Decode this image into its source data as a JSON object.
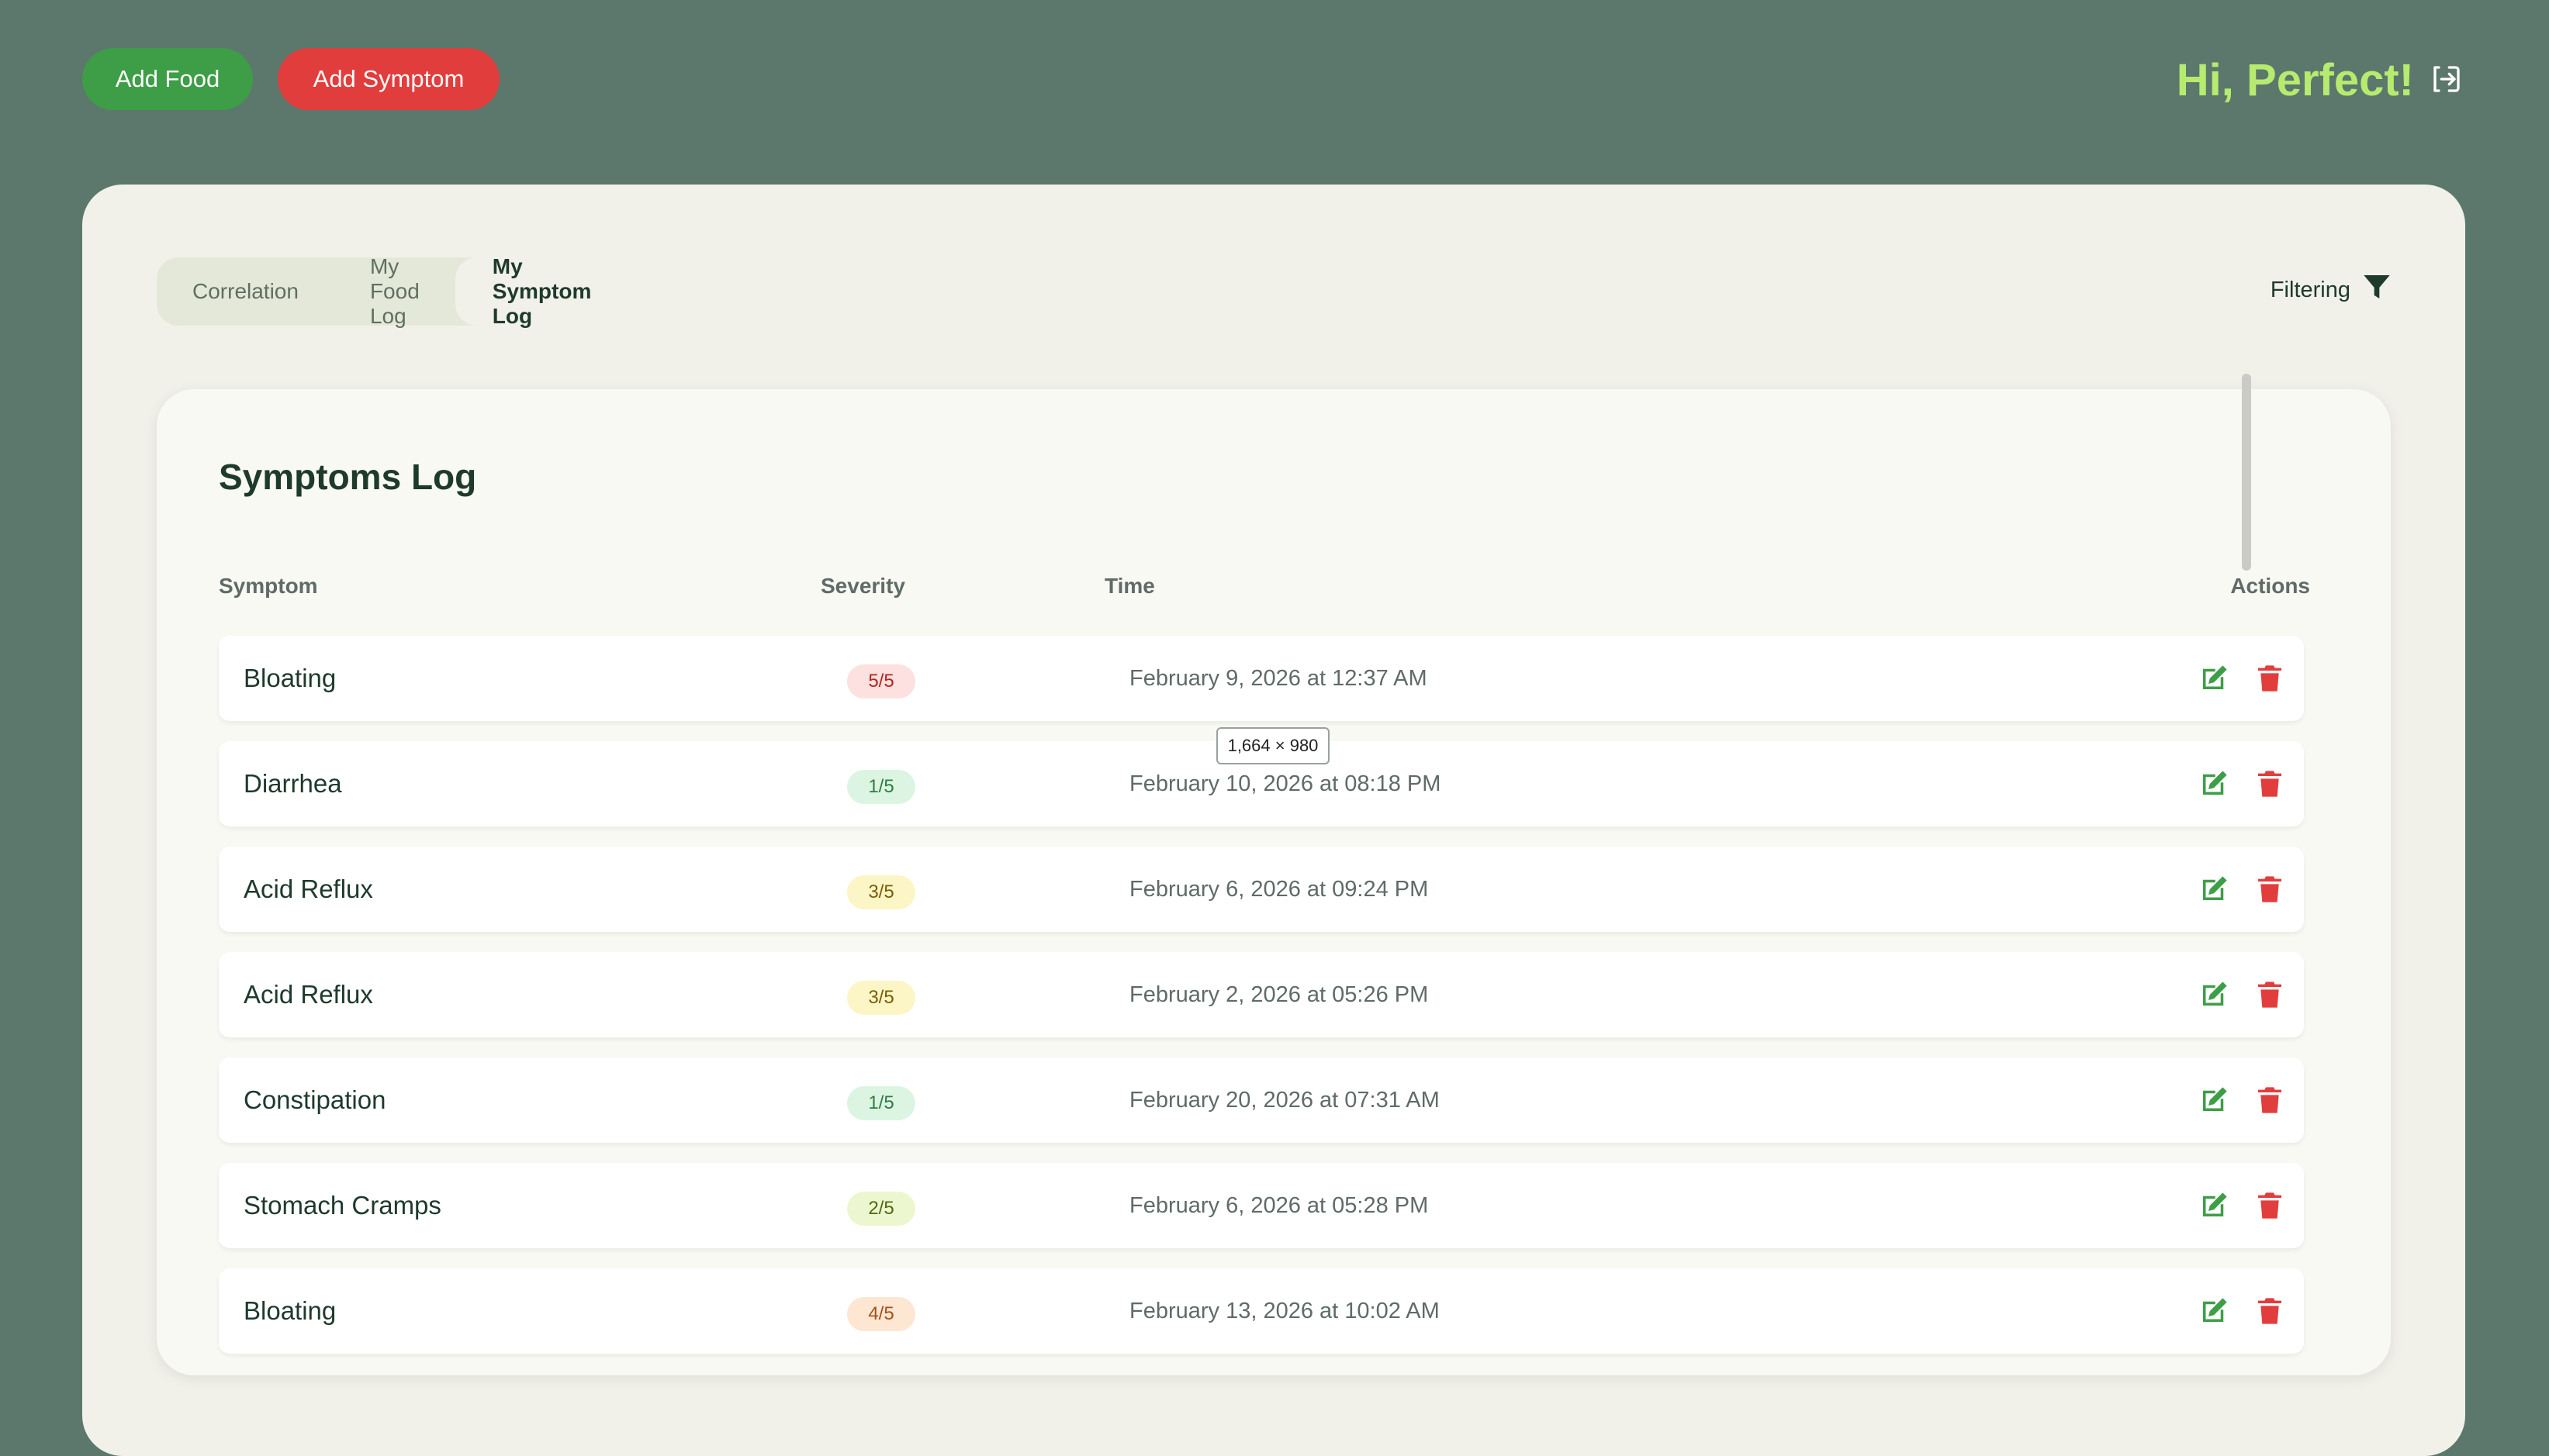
{
  "header": {
    "add_food_label": "Add Food",
    "add_symptom_label": "Add Symptom",
    "greeting": "Hi, Perfect!",
    "colors": {
      "add_food": "#3e9e47",
      "add_symptom": "#e23d3d",
      "greeting": "#b6eb6f"
    }
  },
  "tabs": [
    {
      "label": "Correlation"
    },
    {
      "label": "My Food Log"
    },
    {
      "label": "My Symptom Log",
      "active": true
    }
  ],
  "filtering_label": "Filtering",
  "log": {
    "title": "Symptoms Log",
    "columns": [
      "Symptom",
      "Severity",
      "Time",
      "Actions"
    ],
    "rows": [
      {
        "symptom": "Bloating",
        "severity": "5/5",
        "time": "February 9, 2026 at 12:37 AM",
        "badge_bg": "#fde0e0",
        "badge_fg": "#b3261e"
      },
      {
        "symptom": "Diarrhea",
        "severity": "1/5",
        "time": "February 10, 2026 at 08:18 PM",
        "badge_bg": "#dcf5e3",
        "badge_fg": "#2e7d43"
      },
      {
        "symptom": "Acid Reflux",
        "severity": "3/5",
        "time": "February 6, 2026 at 09:24 PM",
        "badge_bg": "#fcf6c6",
        "badge_fg": "#7a5c06"
      },
      {
        "symptom": "Acid Reflux",
        "severity": "3/5",
        "time": "February 2, 2026 at 05:26 PM",
        "badge_bg": "#fcf6c6",
        "badge_fg": "#7a5c06"
      },
      {
        "symptom": "Constipation",
        "severity": "1/5",
        "time": "February 20, 2026 at 07:31 AM",
        "badge_bg": "#dcf5e3",
        "badge_fg": "#2e7d43"
      },
      {
        "symptom": "Stomach Cramps",
        "severity": "2/5",
        "time": "February 6, 2026 at 05:28 PM",
        "badge_bg": "#ecf7cf",
        "badge_fg": "#4d6b12"
      },
      {
        "symptom": "Bloating",
        "severity": "4/5",
        "time": "February 13, 2026 at 10:02 AM",
        "badge_bg": "#fde6d2",
        "badge_fg": "#a4511a"
      }
    ]
  },
  "tooltip": "1,664 × 980",
  "icons": {
    "logout": "logout-icon",
    "filter": "filter-funnel-icon",
    "edit": "edit-icon",
    "delete": "trash-icon"
  }
}
